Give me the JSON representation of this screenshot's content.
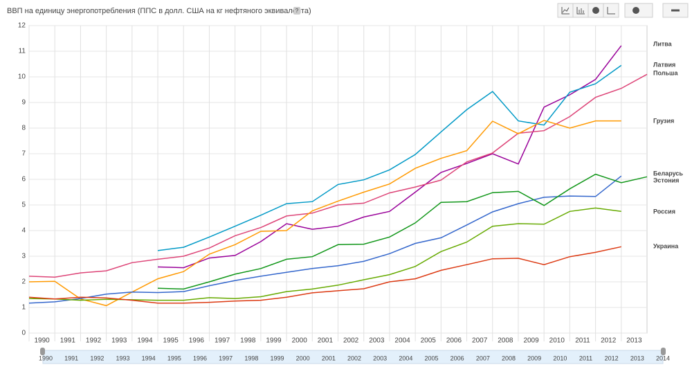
{
  "chart_data": {
    "type": "line",
    "title": "ВВП на единицу энергопотребления (ППС в долл. США на кг нефтяного эквивалента)",
    "help": "?",
    "x": [
      1990,
      1991,
      1992,
      1993,
      1994,
      1995,
      1996,
      1997,
      1998,
      1999,
      2000,
      2001,
      2002,
      2003,
      2004,
      2005,
      2006,
      2007,
      2008,
      2009,
      2010,
      2011,
      2012,
      2013,
      2014
    ],
    "xlim": [
      1990,
      2014
    ],
    "xticks": [
      1990,
      1991,
      1992,
      1993,
      1994,
      1995,
      1996,
      1997,
      1998,
      1999,
      2000,
      2001,
      2002,
      2003,
      2004,
      2005,
      2006,
      2007,
      2008,
      2009,
      2010,
      2011,
      2012,
      2013
    ],
    "ylim": [
      0,
      12
    ],
    "yticks": [
      0,
      1,
      2,
      3,
      4,
      5,
      6,
      7,
      8,
      9,
      10,
      11,
      12
    ],
    "grid": true,
    "legend": "right",
    "series": [
      {
        "name": "Литва",
        "color": "#990099",
        "values": [
          null,
          null,
          null,
          null,
          null,
          2.58,
          2.55,
          2.93,
          3.03,
          3.57,
          4.27,
          4.05,
          4.17,
          4.53,
          4.75,
          5.5,
          6.27,
          6.62,
          7.0,
          6.6,
          8.82,
          9.3,
          9.9,
          11.22,
          null
        ]
      },
      {
        "name": "Латвия",
        "color": "#0099c6",
        "values": [
          null,
          null,
          null,
          null,
          null,
          3.22,
          3.35,
          3.75,
          4.17,
          4.6,
          5.05,
          5.13,
          5.8,
          5.98,
          6.37,
          6.97,
          7.85,
          8.72,
          9.43,
          8.28,
          8.12,
          9.4,
          9.73,
          10.45,
          null
        ]
      },
      {
        "name": "Польша",
        "color": "#dd4477",
        "values": [
          2.22,
          2.18,
          2.35,
          2.43,
          2.75,
          2.88,
          3.0,
          3.32,
          3.8,
          4.12,
          4.57,
          4.68,
          5.0,
          5.07,
          5.47,
          5.7,
          5.97,
          6.68,
          7.03,
          7.8,
          7.9,
          8.45,
          9.2,
          9.55,
          10.1
        ]
      },
      {
        "name": "Грузия",
        "color": "#ff9900",
        "values": [
          2.0,
          2.02,
          1.33,
          1.07,
          1.6,
          2.12,
          2.4,
          3.08,
          3.45,
          3.97,
          4.0,
          4.77,
          5.15,
          5.5,
          5.82,
          6.43,
          6.82,
          7.12,
          8.27,
          7.78,
          8.3,
          8.0,
          8.28,
          8.28,
          null
        ]
      },
      {
        "name": "Беларусь",
        "color": "#3366cc",
        "values": [
          1.17,
          1.22,
          1.35,
          1.52,
          1.6,
          1.58,
          1.62,
          1.85,
          2.05,
          2.22,
          2.37,
          2.52,
          2.63,
          2.8,
          3.1,
          3.5,
          3.72,
          4.22,
          4.73,
          5.05,
          5.3,
          5.35,
          5.33,
          6.13,
          null
        ]
      },
      {
        "name": "Эстония",
        "color": "#109618",
        "values": [
          null,
          null,
          null,
          null,
          null,
          1.75,
          1.72,
          2.0,
          2.3,
          2.52,
          2.88,
          2.98,
          3.45,
          3.47,
          3.75,
          4.3,
          5.1,
          5.13,
          5.48,
          5.53,
          4.98,
          5.63,
          6.2,
          5.87,
          6.1
        ]
      },
      {
        "name": "Россия",
        "color": "#66aa00",
        "values": [
          1.35,
          1.33,
          1.28,
          1.32,
          1.3,
          1.28,
          1.28,
          1.38,
          1.35,
          1.42,
          1.62,
          1.72,
          1.87,
          2.08,
          2.28,
          2.6,
          3.18,
          3.55,
          4.17,
          4.27,
          4.25,
          4.75,
          4.88,
          4.75,
          null
        ]
      },
      {
        "name": "Украина",
        "color": "#dc3912",
        "values": [
          1.4,
          1.33,
          1.4,
          1.37,
          1.28,
          1.17,
          1.17,
          1.2,
          1.25,
          1.28,
          1.4,
          1.57,
          1.65,
          1.73,
          2.0,
          2.12,
          2.45,
          2.67,
          2.9,
          2.92,
          2.67,
          2.98,
          3.15,
          3.37,
          null
        ]
      }
    ],
    "timeline_years": [
      1990,
      1991,
      1992,
      1993,
      1994,
      1995,
      1996,
      1997,
      1998,
      1999,
      2000,
      2001,
      2002,
      2003,
      2004,
      2005,
      2006,
      2007,
      2008,
      2009,
      2010,
      2011,
      2012,
      2013,
      2014
    ]
  }
}
